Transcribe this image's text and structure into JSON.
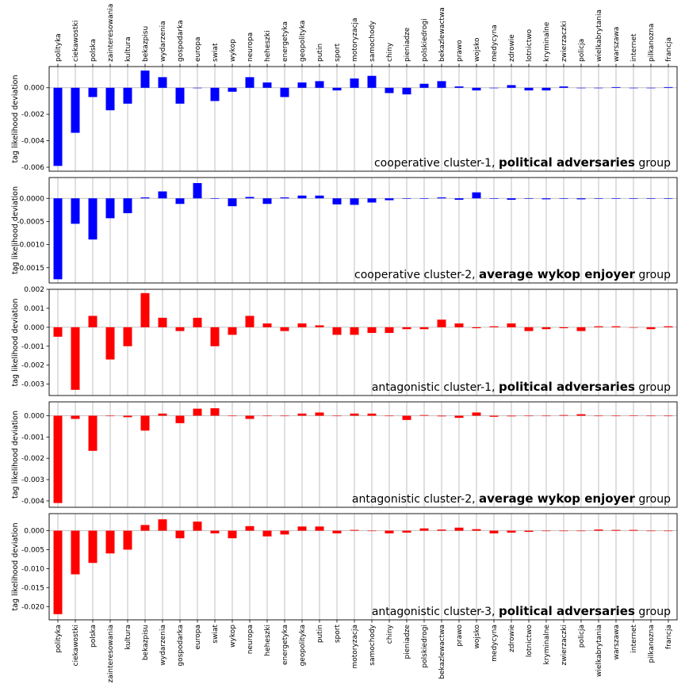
{
  "categories": [
    "polityka",
    "ciekawostki",
    "polska",
    "zainteresowania",
    "kultura",
    "bekazpisu",
    "wydarzenia",
    "gospodarka",
    "europa",
    "swiat",
    "wykop",
    "neuropa",
    "heheszki",
    "energetyka",
    "geopolityka",
    "putin",
    "sport",
    "motoryzacja",
    "samochody",
    "chiny",
    "pieniadze",
    "polskiedrogi",
    "bekazlewactwa",
    "prawo",
    "wojsko",
    "medycyna",
    "zdrowie",
    "lotnictwo",
    "kryminalne",
    "zwierzaczki",
    "policja",
    "wielkabrytania",
    "warszawa",
    "internet",
    "pilkanozna",
    "francja"
  ],
  "ylabel": "tag likelihood deviation",
  "chart_data": [
    {
      "type": "bar",
      "color": "#0000ff",
      "ylim": [
        -0.0063,
        0.0016
      ],
      "yticks": [
        "-0.006",
        "-0.004",
        "-0.002",
        "0.000"
      ],
      "ytick_values": [
        -0.006,
        -0.004,
        -0.002,
        0.0
      ],
      "annotation_prefix": "cooperative cluster-1, ",
      "annotation_bold": "political adversaries",
      "annotation_suffix": " group",
      "values": [
        -0.0059,
        -0.0034,
        -0.0007,
        -0.0017,
        -0.0012,
        0.0013,
        0.0008,
        -0.0012,
        0.0,
        -0.001,
        -0.0003,
        0.0008,
        0.0004,
        -0.0007,
        0.0004,
        0.0005,
        -0.0002,
        0.0007,
        0.0009,
        -0.0004,
        -0.0005,
        0.0003,
        0.0005,
        0.0001,
        -0.0002,
        0.0,
        0.0002,
        -0.0002,
        -0.0002,
        0.0001,
        0.0,
        0.0,
        5e-05,
        0.0,
        0.0,
        5e-05
      ]
    },
    {
      "type": "bar",
      "color": "#0000ff",
      "ylim": [
        -0.00183,
        0.00045
      ],
      "yticks": [
        "-0.0015",
        "-0.0010",
        "-0.0005",
        "0.0000"
      ],
      "ytick_values": [
        -0.0015,
        -0.001,
        -0.0005,
        0.0
      ],
      "annotation_prefix": "cooperative cluster-2, ",
      "annotation_bold": "average wykop enjoyer",
      "annotation_suffix": " group",
      "values": [
        -0.00175,
        -0.00055,
        -0.00089,
        -0.00043,
        -0.00032,
        2e-05,
        0.00015,
        -0.00012,
        0.00033,
        -0.0,
        -0.00017,
        3e-05,
        -0.00012,
        2e-05,
        6e-05,
        6e-05,
        -0.00013,
        -0.00014,
        -9e-05,
        -4e-05,
        0.0,
        -1e-05,
        2e-05,
        -3e-05,
        0.00013,
        -1e-05,
        -3e-05,
        0.0,
        -2e-05,
        0.0,
        -2e-05,
        0.0,
        -1e-05,
        -1e-05,
        -1e-05,
        0.0
      ]
    },
    {
      "type": "bar",
      "color": "#ff0000",
      "ylim": [
        -0.0036,
        0.002
      ],
      "yticks": [
        "-0.003",
        "-0.002",
        "-0.001",
        "0.000",
        "0.001",
        "0.002"
      ],
      "ytick_values": [
        -0.003,
        -0.002,
        -0.001,
        0.0,
        0.001,
        0.002
      ],
      "annotation_prefix": "antagonistic cluster-1, ",
      "annotation_bold": "political adversaries",
      "annotation_suffix": " group",
      "values": [
        -0.0005,
        -0.0033,
        0.0006,
        -0.0017,
        -0.001,
        0.0018,
        0.0005,
        -0.0002,
        0.0005,
        -0.001,
        -0.0004,
        0.0006,
        0.0002,
        -0.0002,
        0.0002,
        0.0001,
        -0.0004,
        -0.0004,
        -0.0003,
        -0.0003,
        -0.0001,
        -0.0001,
        0.0004,
        0.0002,
        -5e-05,
        5e-05,
        0.0002,
        -0.0002,
        -0.0001,
        -5e-05,
        -0.0002,
        5e-05,
        5e-05,
        0.0,
        -0.0001,
        5e-05
      ]
    },
    {
      "type": "bar",
      "color": "#ff0000",
      "ylim": [
        -0.0043,
        0.00065
      ],
      "yticks": [
        "-0.004",
        "-0.003",
        "-0.002",
        "-0.001",
        "0.000"
      ],
      "ytick_values": [
        -0.004,
        -0.003,
        -0.002,
        -0.001,
        0.0
      ],
      "annotation_prefix": "antagonistic cluster-2, ",
      "annotation_bold": "average wykop enjoyer",
      "annotation_suffix": " group",
      "values": [
        -0.0041,
        -0.00015,
        -0.00165,
        0.0,
        -7e-05,
        -0.0007,
        0.0001,
        -0.00035,
        0.00033,
        0.00035,
        0.0,
        -0.00015,
        0.0,
        0.0,
        0.0001,
        0.00015,
        0.0,
        0.0001,
        0.0001,
        0.0,
        -0.0002,
        3e-05,
        -3e-05,
        -0.0001,
        0.00015,
        -5e-05,
        -3e-05,
        0.0,
        0.0,
        3e-05,
        7e-05,
        0.0,
        0.0,
        2e-05,
        0.0,
        0.0
      ]
    },
    {
      "type": "bar",
      "color": "#ff0000",
      "ylim": [
        -0.0235,
        0.0045
      ],
      "yticks": [
        "-0.020",
        "-0.015",
        "-0.010",
        "-0.005",
        "0.000"
      ],
      "ytick_values": [
        -0.02,
        -0.015,
        -0.01,
        -0.005,
        0.0
      ],
      "annotation_prefix": "antagonistic cluster-3, ",
      "annotation_bold": "political adversaries",
      "annotation_suffix": " group",
      "values": [
        -0.022,
        -0.0115,
        -0.0085,
        -0.006,
        -0.005,
        0.0015,
        0.003,
        -0.002,
        0.0024,
        -0.0007,
        -0.002,
        0.0012,
        -0.0015,
        -0.001,
        0.0011,
        0.0011,
        -0.0007,
        0.0002,
        0.0,
        -0.0007,
        -0.0005,
        0.0006,
        0.0003,
        0.0008,
        0.0004,
        -0.0007,
        -0.0005,
        -0.0003,
        0.0,
        0.0,
        0.0,
        0.0003,
        0.0002,
        0.0002,
        0.0,
        0.0
      ]
    }
  ]
}
